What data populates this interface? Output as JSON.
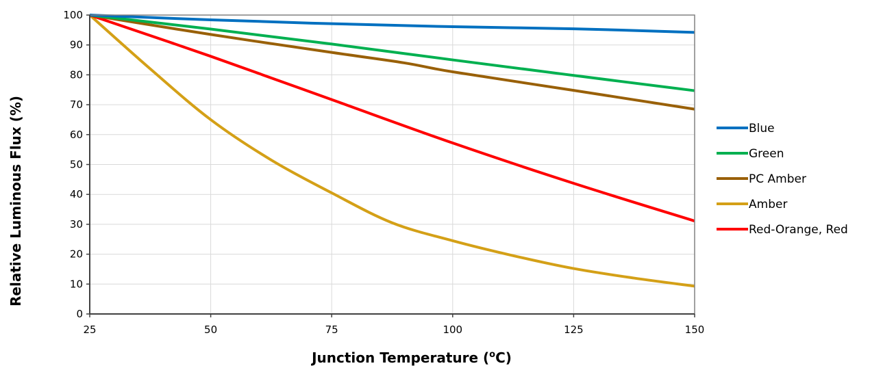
{
  "chart_data": {
    "type": "line",
    "title": "",
    "xlabel": "Junction Temperature (°C)",
    "xlabel_main": "Junction Temperature (",
    "xlabel_sup": "o",
    "xlabel_tail": "C)",
    "ylabel": "Relative Luminous Flux (%)",
    "xlim": [
      25,
      150
    ],
    "ylim": [
      0,
      100
    ],
    "xticks": [
      25,
      50,
      75,
      100,
      125,
      150
    ],
    "yticks": [
      0,
      10,
      20,
      30,
      40,
      50,
      60,
      70,
      80,
      90,
      100
    ],
    "grid": true,
    "legend_position": "right",
    "series": [
      {
        "name": "Blue",
        "color": "#0070C0",
        "x": [
          25,
          50,
          75,
          100,
          125,
          150
        ],
        "y": [
          100,
          98.4,
          97.1,
          96.1,
          95.4,
          94.2
        ]
      },
      {
        "name": "Green",
        "color": "#00B050",
        "x": [
          25,
          50,
          75,
          100,
          125,
          150
        ],
        "y": [
          100,
          95.3,
          90.3,
          85.0,
          79.8,
          74.7
        ]
      },
      {
        "name": "PC Amber",
        "color": "#996007",
        "x": [
          25,
          50,
          75,
          90,
          100,
          125,
          150
        ],
        "y": [
          100,
          93.5,
          87.5,
          84.0,
          81.0,
          74.8,
          68.5
        ]
      },
      {
        "name": "Amber",
        "color": "#D4A017",
        "x": [
          25,
          37.5,
          50,
          62.5,
          75,
          87.5,
          100,
          112.5,
          125,
          137.5,
          150
        ],
        "y": [
          100,
          82,
          65,
          51.5,
          40.5,
          30.5,
          24.5,
          19.5,
          15.2,
          12,
          9.3
        ]
      },
      {
        "name": "Red-Orange, Red",
        "color": "#FF0000",
        "x": [
          25,
          50,
          75,
          100,
          125,
          150
        ],
        "y": [
          100,
          86.2,
          71.7,
          57.2,
          43.7,
          31.1
        ]
      }
    ]
  }
}
